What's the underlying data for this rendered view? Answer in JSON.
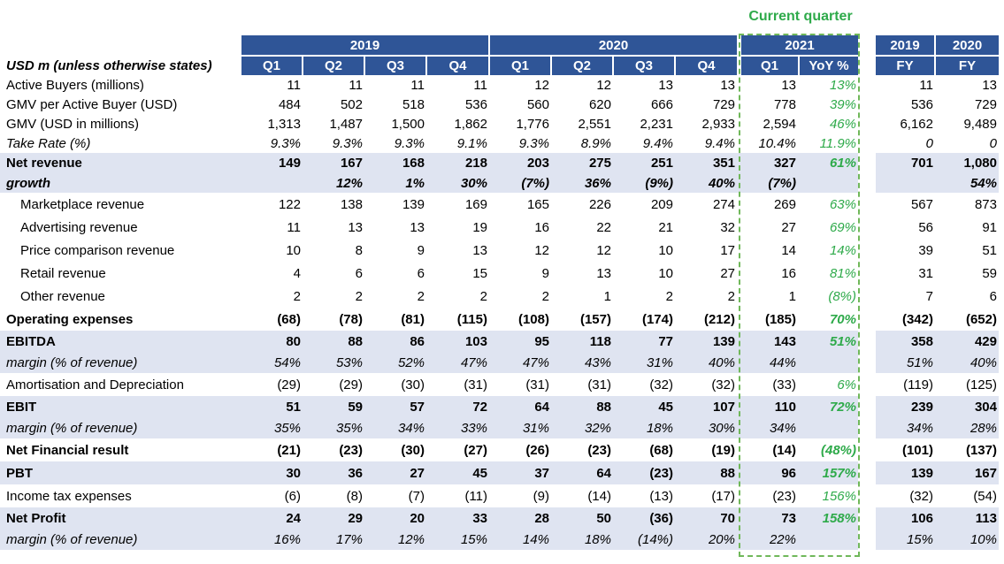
{
  "current_quarter_label": "Current quarter",
  "header": {
    "units_label": "USD m (unless otherwise states)",
    "years": [
      "2019",
      "2020",
      "2021"
    ],
    "fy_years": [
      "2019",
      "2020"
    ],
    "quarters": [
      "Q1",
      "Q2",
      "Q3",
      "Q4",
      "Q1",
      "Q2",
      "Q3",
      "Q4",
      "Q1"
    ],
    "yoy_label": "YoY %",
    "fy_label": "FY"
  },
  "colors": {
    "header_bg": "#2f5597",
    "band_bg": "#dfe4f1",
    "accent_green": "#2eaa4a",
    "dash_green": "#70b85a"
  },
  "rows": [
    {
      "label": "Active Buyers (millions)",
      "style": "normal",
      "values": [
        "11",
        "11",
        "11",
        "11",
        "12",
        "12",
        "13",
        "13",
        "13"
      ],
      "yoy": "13%",
      "fy": [
        "11",
        "13"
      ]
    },
    {
      "label": "GMV per Active Buyer (USD)",
      "style": "normal",
      "values": [
        "484",
        "502",
        "518",
        "536",
        "560",
        "620",
        "666",
        "729",
        "778"
      ],
      "yoy": "39%",
      "fy": [
        "536",
        "729"
      ]
    },
    {
      "label": "GMV (USD in millions)",
      "style": "normal",
      "values": [
        "1,313",
        "1,487",
        "1,500",
        "1,862",
        "1,776",
        "2,551",
        "2,231",
        "2,933",
        "2,594"
      ],
      "yoy": "46%",
      "fy": [
        "6,162",
        "9,489"
      ]
    },
    {
      "label": "Take Rate (%)",
      "style": "italic",
      "values": [
        "9.3%",
        "9.3%",
        "9.3%",
        "9.1%",
        "9.3%",
        "8.9%",
        "9.4%",
        "9.4%",
        "10.4%"
      ],
      "yoy": "11.9%",
      "fy": [
        "0",
        "0"
      ]
    },
    {
      "label": "Net revenue",
      "style": "bold-band",
      "values": [
        "149",
        "167",
        "168",
        "218",
        "203",
        "275",
        "251",
        "351",
        "327"
      ],
      "yoy": "61%",
      "fy": [
        "701",
        "1,080"
      ]
    },
    {
      "label": "growth",
      "style": "bolditalic-band",
      "values": [
        "",
        "12%",
        "1%",
        "30%",
        "(7%)",
        "36%",
        "(9%)",
        "40%",
        "(7%)"
      ],
      "yoy": "",
      "fy": [
        "",
        "54%"
      ]
    },
    {
      "label": "Marketplace revenue",
      "style": "indent",
      "values": [
        "122",
        "138",
        "139",
        "169",
        "165",
        "226",
        "209",
        "274",
        "269"
      ],
      "yoy": "63%",
      "fy": [
        "567",
        "873"
      ]
    },
    {
      "label": "Advertising revenue",
      "style": "indent",
      "values": [
        "11",
        "13",
        "13",
        "19",
        "16",
        "22",
        "21",
        "32",
        "27"
      ],
      "yoy": "69%",
      "fy": [
        "56",
        "91"
      ]
    },
    {
      "label": "Price comparison revenue",
      "style": "indent",
      "values": [
        "10",
        "8",
        "9",
        "13",
        "12",
        "12",
        "10",
        "17",
        "14"
      ],
      "yoy": "14%",
      "fy": [
        "39",
        "51"
      ]
    },
    {
      "label": "Retail revenue",
      "style": "indent",
      "values": [
        "4",
        "6",
        "6",
        "15",
        "9",
        "13",
        "10",
        "27",
        "16"
      ],
      "yoy": "81%",
      "fy": [
        "31",
        "59"
      ]
    },
    {
      "label": "Other revenue",
      "style": "indent",
      "values": [
        "2",
        "2",
        "2",
        "2",
        "2",
        "1",
        "2",
        "2",
        "1"
      ],
      "yoy": "(8%)",
      "fy": [
        "7",
        "6"
      ]
    },
    {
      "label": "Operating expenses",
      "style": "bold",
      "values": [
        "(68)",
        "(78)",
        "(81)",
        "(115)",
        "(108)",
        "(157)",
        "(174)",
        "(212)",
        "(185)"
      ],
      "yoy": "70%",
      "fy": [
        "(342)",
        "(652)"
      ]
    },
    {
      "label": "EBITDA",
      "style": "bold-band",
      "values": [
        "80",
        "88",
        "86",
        "103",
        "95",
        "118",
        "77",
        "139",
        "143"
      ],
      "yoy": "51%",
      "fy": [
        "358",
        "429"
      ]
    },
    {
      "label": "margin (% of revenue)",
      "style": "italic-band",
      "values": [
        "54%",
        "53%",
        "52%",
        "47%",
        "47%",
        "43%",
        "31%",
        "40%",
        "44%"
      ],
      "yoy": "",
      "fy": [
        "51%",
        "40%"
      ]
    },
    {
      "label": "Amortisation and Depreciation",
      "style": "normal",
      "values": [
        "(29)",
        "(29)",
        "(30)",
        "(31)",
        "(31)",
        "(31)",
        "(32)",
        "(32)",
        "(33)"
      ],
      "yoy": "6%",
      "fy": [
        "(119)",
        "(125)"
      ]
    },
    {
      "label": "EBIT",
      "style": "bold-band",
      "values": [
        "51",
        "59",
        "57",
        "72",
        "64",
        "88",
        "45",
        "107",
        "110"
      ],
      "yoy": "72%",
      "fy": [
        "239",
        "304"
      ]
    },
    {
      "label": "margin (% of revenue)",
      "style": "italic-band",
      "values": [
        "35%",
        "35%",
        "34%",
        "33%",
        "31%",
        "32%",
        "18%",
        "30%",
        "34%"
      ],
      "yoy": "",
      "fy": [
        "34%",
        "28%"
      ]
    },
    {
      "label": "Net Financial result",
      "style": "bold",
      "values": [
        "(21)",
        "(23)",
        "(30)",
        "(27)",
        "(26)",
        "(23)",
        "(68)",
        "(19)",
        "(14)"
      ],
      "yoy": "(48%)",
      "fy": [
        "(101)",
        "(137)"
      ]
    },
    {
      "label": "PBT",
      "style": "bold-band",
      "values": [
        "30",
        "36",
        "27",
        "45",
        "37",
        "64",
        "(23)",
        "88",
        "96"
      ],
      "yoy": "157%",
      "fy": [
        "139",
        "167"
      ]
    },
    {
      "label": "Income tax expenses",
      "style": "normal",
      "values": [
        "(6)",
        "(8)",
        "(7)",
        "(11)",
        "(9)",
        "(14)",
        "(13)",
        "(17)",
        "(23)"
      ],
      "yoy": "156%",
      "fy": [
        "(32)",
        "(54)"
      ]
    },
    {
      "label": "Net Profit",
      "style": "bold-band",
      "values": [
        "24",
        "29",
        "20",
        "33",
        "28",
        "50",
        "(36)",
        "70",
        "73"
      ],
      "yoy": "158%",
      "fy": [
        "106",
        "113"
      ]
    },
    {
      "label": "margin (% of revenue)",
      "style": "italic-band",
      "values": [
        "16%",
        "17%",
        "12%",
        "15%",
        "14%",
        "18%",
        "(14%)",
        "20%",
        "22%"
      ],
      "yoy": "",
      "fy": [
        "15%",
        "10%"
      ]
    }
  ]
}
